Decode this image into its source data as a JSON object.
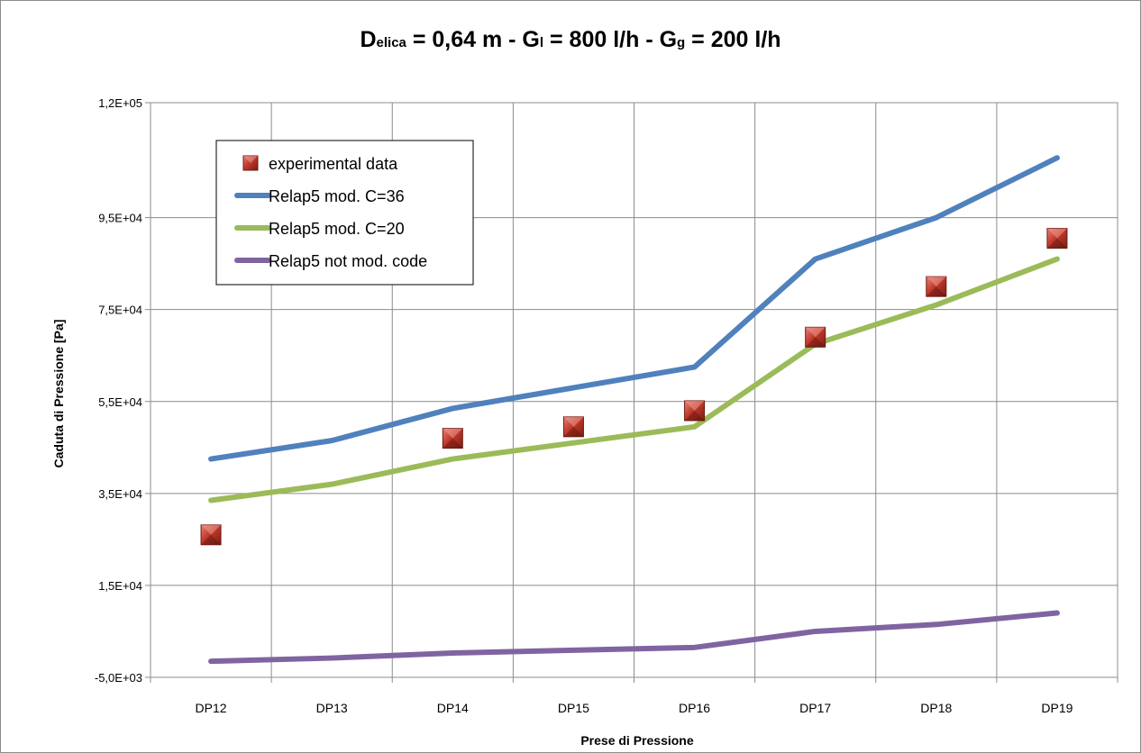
{
  "chart_data": {
    "type": "line",
    "title": {
      "parts": [
        {
          "text": "D",
          "sub": false
        },
        {
          "text": "elica",
          "sub": true
        },
        {
          "text": " = 0,64 m - G",
          "sub": false
        },
        {
          "text": "l",
          "sub": true
        },
        {
          "text": " = 800 l/h - G",
          "sub": false
        },
        {
          "text": "g",
          "sub": true
        },
        {
          "text": " = 200 l/h",
          "sub": false
        }
      ]
    },
    "xlabel": "Prese di Pressione",
    "ylabel": "Caduta di Pressione [Pa]",
    "categories": [
      "DP12",
      "DP13",
      "DP14",
      "DP15",
      "DP16",
      "DP17",
      "DP18",
      "DP19"
    ],
    "ylim": [
      -5000,
      120000
    ],
    "yticks": [
      -5000,
      15000,
      35000,
      55000,
      75000,
      95000,
      120000
    ],
    "ytick_labels": [
      "-5,0E+03",
      "1,5E+04",
      "3,5E+04",
      "5,5E+04",
      "7,5E+04",
      "9,5E+04",
      "1,2E+05"
    ],
    "grid": true,
    "legend_placement": "top-left",
    "series": [
      {
        "name": "experimental data",
        "kind": "marker",
        "color": "#c0392b",
        "values": [
          26000,
          null,
          47000,
          49500,
          53000,
          69000,
          80000,
          90500
        ]
      },
      {
        "name": "Relap5 mod. C=36",
        "kind": "line",
        "color": "#4f81bd",
        "values": [
          42500,
          46500,
          53500,
          58000,
          62500,
          86000,
          95000,
          108000
        ]
      },
      {
        "name": "Relap5 mod. C=20",
        "kind": "line",
        "color": "#9bbb59",
        "values": [
          33500,
          37000,
          42500,
          46000,
          49500,
          67500,
          76000,
          86000
        ]
      },
      {
        "name": "Relap5 not mod. code",
        "kind": "line",
        "color": "#8064a2",
        "values": [
          -1500,
          -800,
          300,
          900,
          1500,
          5000,
          6500,
          9000
        ]
      }
    ]
  }
}
